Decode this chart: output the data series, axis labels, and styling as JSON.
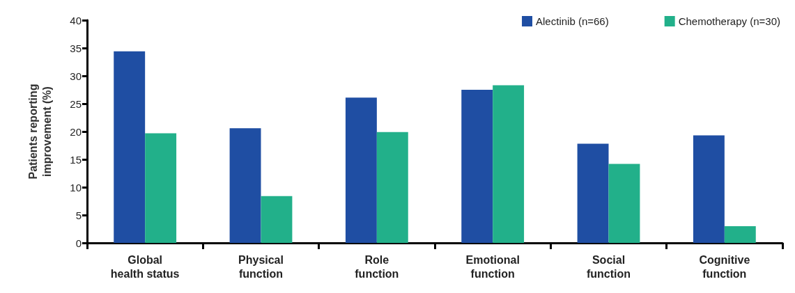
{
  "chart_data": {
    "type": "bar",
    "ylabel": "Patients reporting\nimprovement (%)",
    "categories": [
      "Global\nhealth status",
      "Physical\nfunction",
      "Role\nfunction",
      "Emotional\nfunction",
      "Social\nfunction",
      "Cognitive\nfunction"
    ],
    "series": [
      {
        "name": "Alectinib (n=66)",
        "color": "#1f4ea3",
        "values": [
          34.4,
          20.6,
          26.1,
          27.5,
          17.8,
          19.3
        ]
      },
      {
        "name": "Chemotherapy (n=30)",
        "color": "#22b08a",
        "values": [
          19.7,
          8.4,
          19.9,
          28.3,
          14.2,
          3.0
        ]
      }
    ],
    "ylim": [
      0,
      40
    ],
    "yticks": [
      0,
      5,
      10,
      15,
      20,
      25,
      30,
      35,
      40
    ],
    "grid": false,
    "legend": "top right"
  }
}
